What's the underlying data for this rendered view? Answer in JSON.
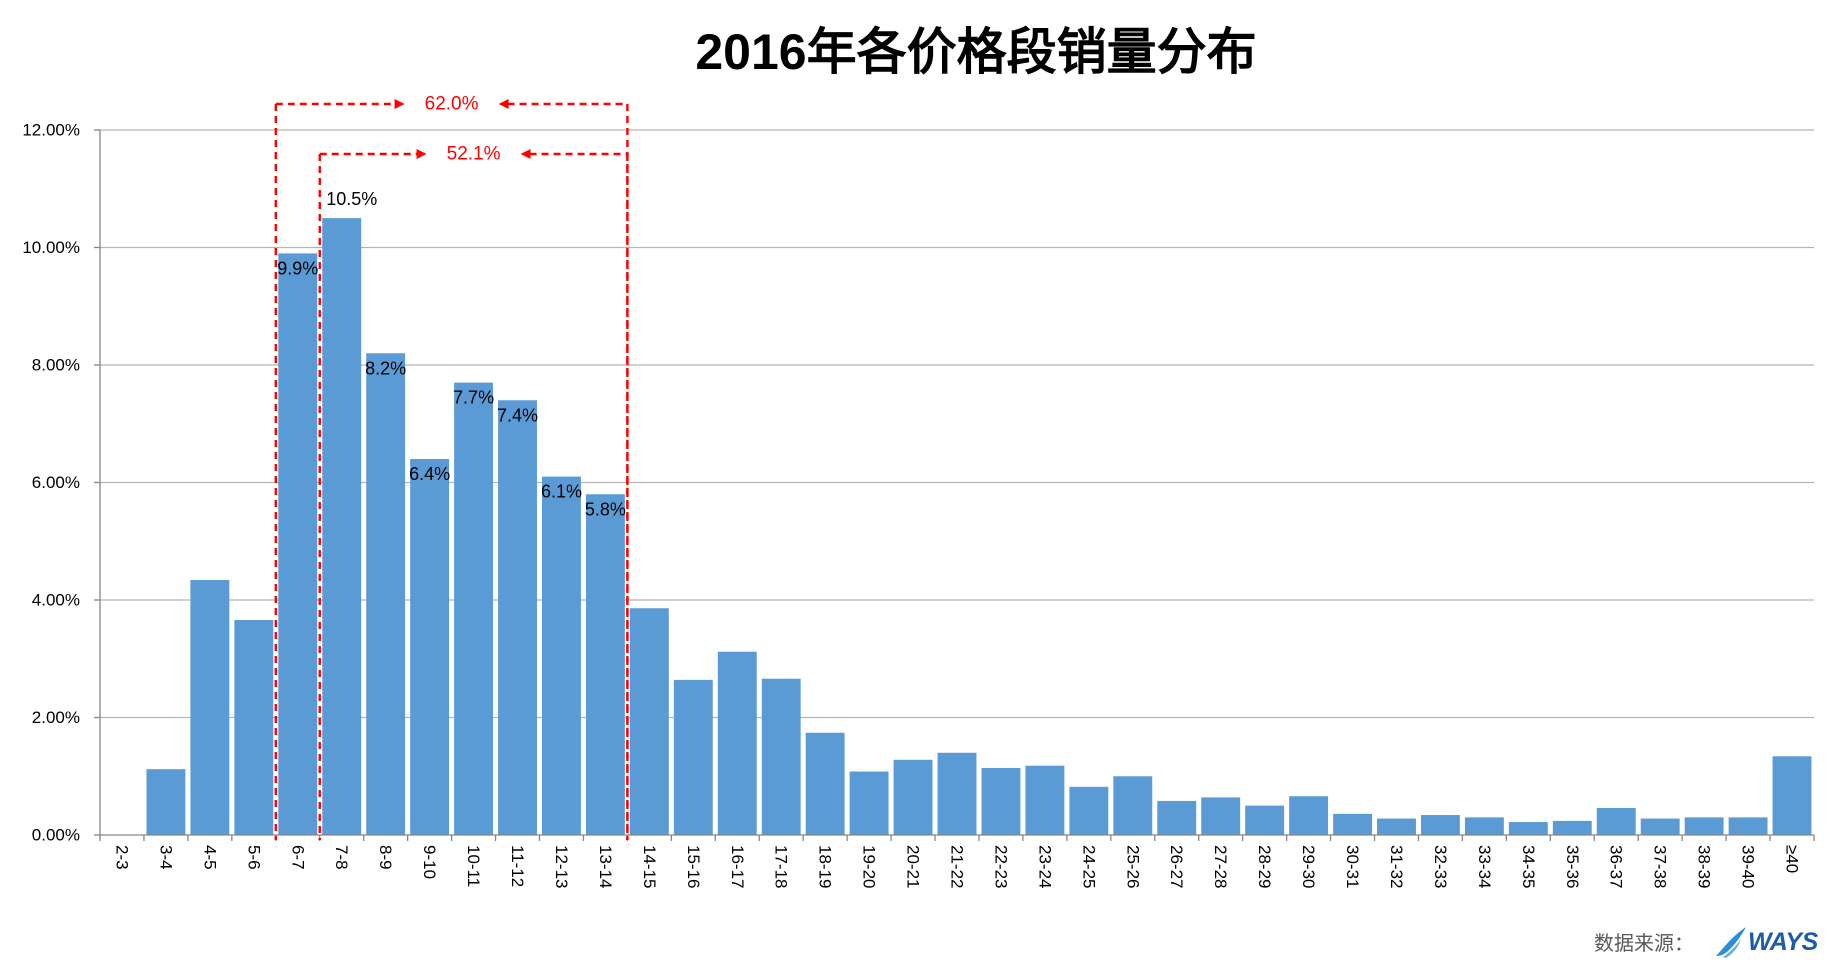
{
  "source": {
    "label": "数据来源：",
    "logo_text": "WAYS",
    "logo_icon": "swoosh-icon",
    "logo_color": "#1D5CAB",
    "logo_icon_color": "#2A8FD6"
  },
  "chart_data": {
    "type": "bar",
    "title": "2016年各价格段销量分布",
    "categories": [
      "2-3",
      "3-4",
      "4-5",
      "5-6",
      "6-7",
      "7-8",
      "8-9",
      "9-10",
      "10-11",
      "11-12",
      "12-13",
      "13-14",
      "14-15",
      "15-16",
      "16-17",
      "17-18",
      "18-19",
      "19-20",
      "20-21",
      "21-22",
      "22-23",
      "23-24",
      "24-25",
      "25-26",
      "26-27",
      "27-28",
      "28-29",
      "29-30",
      "30-31",
      "31-32",
      "32-33",
      "33-34",
      "34-35",
      "35-36",
      "36-37",
      "37-38",
      "38-39",
      "39-40",
      "≥40"
    ],
    "values": [
      0,
      1.12,
      4.34,
      3.66,
      9.9,
      10.5,
      8.2,
      6.4,
      7.7,
      7.4,
      6.1,
      5.8,
      3.86,
      2.64,
      3.12,
      2.66,
      1.74,
      1.08,
      1.28,
      1.4,
      1.14,
      1.18,
      0.82,
      1.0,
      0.58,
      0.64,
      0.5,
      0.66,
      0.36,
      0.28,
      0.34,
      0.3,
      0.22,
      0.24,
      0.46,
      0.28,
      0.3,
      0.3,
      1.34
    ],
    "data_labels": [
      {
        "index": 4,
        "text": "9.9%"
      },
      {
        "index": 5,
        "text": "10.5%"
      },
      {
        "index": 6,
        "text": "8.2%"
      },
      {
        "index": 7,
        "text": "6.4%"
      },
      {
        "index": 8,
        "text": "7.7%"
      },
      {
        "index": 9,
        "text": "7.4%"
      },
      {
        "index": 10,
        "text": "6.1%"
      },
      {
        "index": 11,
        "text": "5.8%"
      }
    ],
    "ylim": [
      0,
      12
    ],
    "y_ticks": [
      0,
      2,
      4,
      6,
      8,
      10,
      12
    ],
    "y_tick_labels": [
      "0.00%",
      "2.00%",
      "4.00%",
      "6.00%",
      "8.00%",
      "10.00%",
      "12.00%"
    ],
    "grid": true,
    "bar_color": "#5B9BD5",
    "grid_color": "#B4B4B4",
    "axis_color": "#868686",
    "annotations": [
      {
        "label": "62.0%",
        "start_index": 4,
        "end_index": 11,
        "color": "#FF0000"
      },
      {
        "label": "52.1%",
        "start_index": 5,
        "end_index": 11,
        "color": "#FF0000"
      }
    ]
  }
}
